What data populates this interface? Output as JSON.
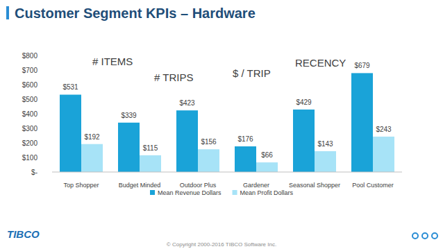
{
  "title": "Customer Segment KPIs – Hardware",
  "footer": "© Copyright 2000-2016 TIBCO Software Inc.",
  "logo": "TIBCO",
  "chart_data": {
    "type": "bar",
    "categories": [
      "Top Shopper",
      "Budget Minded",
      "Outdoor Plus",
      "Gardener",
      "Seasonal Shopper",
      "Pool Customer"
    ],
    "series": [
      {
        "name": "Mean Revenue Dollars",
        "color": "#1aa3d8",
        "values": [
          531,
          339,
          423,
          176,
          429,
          679
        ],
        "value_labels": [
          "$531",
          "$339",
          "$423",
          "$176",
          "$429",
          "$679"
        ]
      },
      {
        "name": "Mean Profit Dollars",
        "color": "#a7e3f7",
        "values": [
          192,
          115,
          156,
          66,
          143,
          243
        ],
        "value_labels": [
          "$192",
          "$115",
          "$156",
          "$66",
          "$143",
          "$243"
        ]
      }
    ],
    "ylim": [
      0,
      800
    ],
    "yticks": [
      {
        "value": 0,
        "label": "$-"
      },
      {
        "value": 100,
        "label": "$100"
      },
      {
        "value": 200,
        "label": "$200"
      },
      {
        "value": 300,
        "label": "$300"
      },
      {
        "value": 400,
        "label": "$400"
      },
      {
        "value": 500,
        "label": "$500"
      },
      {
        "value": 600,
        "label": "$600"
      },
      {
        "value": 700,
        "label": "$700"
      },
      {
        "value": 800,
        "label": "$800"
      }
    ],
    "grid": false,
    "legend": "bottom",
    "data_labels": true,
    "annotations": [
      "# ITEMS",
      "# TRIPS",
      "$ / TRIP",
      "RECENCY"
    ]
  }
}
